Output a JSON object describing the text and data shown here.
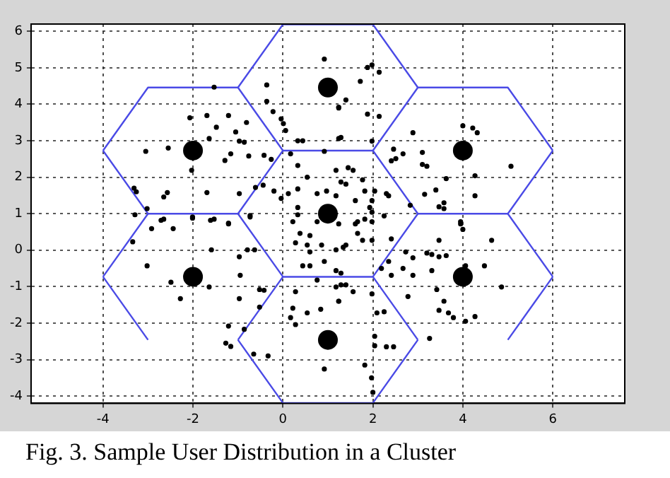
{
  "chart_data": {
    "type": "scatter",
    "xlim": [
      -5.6,
      7.6
    ],
    "ylim": [
      -4.2,
      6.2
    ],
    "xticks": [
      -4,
      -2,
      0,
      2,
      4,
      6
    ],
    "yticks": [
      -4,
      -3,
      -2,
      -1,
      0,
      1,
      2,
      3,
      4,
      5,
      6
    ],
    "grid": true,
    "legend": false,
    "annotations": [
      "Fig.  3. Sample User Distribution in a Cluster"
    ],
    "series": [
      {
        "marker": "circle",
        "color": "#000000",
        "x": [
          -1.53,
          -0.36,
          -0.36,
          -0.22,
          -0.04,
          0.01,
          0.06,
          -2.07,
          -1.69,
          -1.21,
          -0.81,
          -1.48,
          -1.05,
          -0.97,
          -0.86,
          -1.64,
          -2.55,
          -3.05,
          -1.16,
          -0.76,
          -0.42,
          -0.26,
          -1.29,
          -2.03,
          -3.31,
          -3.26,
          -2.57,
          -2.65,
          -1.69,
          -0.97,
          -0.61,
          -0.44,
          0.92,
          1.24,
          1.24,
          0.92,
          0.33,
          0.44,
          0.17,
          0.54,
          0.33,
          1.18,
          1.29,
          -3.02,
          -2.71,
          -2.01,
          -1.61,
          -1.21,
          -0.73,
          -0.2,
          -0.04,
          0.12,
          0.33,
          0.76,
          0.97,
          1.18,
          0.33,
          0.22,
          0.76,
          1.98,
          1.88,
          2.14,
          1.72,
          1.4,
          1.24,
          1.88,
          2.14,
          1.29,
          1.98,
          4.0,
          4.22,
          4.32,
          2.89,
          2.46,
          2.67,
          3.1,
          2.41,
          2.51,
          3.1,
          3.2,
          5.07,
          3.63,
          4.27,
          3.15,
          3.4,
          4.27,
          3.58,
          3.47,
          1.45,
          1.56,
          1.4,
          1.77,
          1.82,
          2.04,
          2.3,
          2.35,
          1.61,
          1.98,
          1.93,
          2.25,
          1.66,
          1.98,
          2.83,
          3.95,
          -3.29,
          -2.92,
          -2.65,
          -2.44,
          -2.01,
          -1.53,
          -1.21,
          -0.73,
          -3.34,
          -1.59,
          -3.02,
          -2.49,
          -2.28,
          -1.64,
          -0.95,
          -0.97,
          -0.97,
          -0.79,
          -0.63,
          -0.52,
          -0.42,
          -0.52,
          -1.21,
          -0.86,
          -1.27,
          -1.16,
          -0.65,
          -0.33,
          0.33,
          0.38,
          0.6,
          0.28,
          0.54,
          0.6,
          0.86,
          1.18,
          1.34,
          0.44,
          0.6,
          0.92,
          0.76,
          1.18,
          1.24,
          0.28,
          0.22,
          0.17,
          0.54,
          0.28,
          0.84,
          0.92,
          1.18,
          1.29,
          1.4,
          1.24,
          1.61,
          1.82,
          1.98,
          1.66,
          1.4,
          1.77,
          1.98,
          2.41,
          2.73,
          3.2,
          3.31,
          2.89,
          3.47,
          3.63,
          2.35,
          2.19,
          2.67,
          2.41,
          2.89,
          3.31,
          4.06,
          4.48,
          4.86,
          1.29,
          1.56,
          1.24,
          1.98,
          2.78,
          3.42,
          3.58,
          2.09,
          2.25,
          3.47,
          3.68,
          3.79,
          4.06,
          4.27,
          2.04,
          2.04,
          2.3,
          2.46,
          3.26,
          1.82,
          4.64,
          3.95,
          4.0,
          3.58,
          3.47,
          1.97,
          2.0
        ],
        "values": [
          4.47,
          4.53,
          4.08,
          3.8,
          3.6,
          3.47,
          3.28,
          3.63,
          3.69,
          3.69,
          3.5,
          3.37,
          3.24,
          2.99,
          2.96,
          3.06,
          2.8,
          2.71,
          2.64,
          2.58,
          2.6,
          2.49,
          2.46,
          2.19,
          1.7,
          1.6,
          1.58,
          1.46,
          1.58,
          1.55,
          1.72,
          1.78,
          5.24,
          3.9,
          3.06,
          2.71,
          3.0,
          3.0,
          2.64,
          2.0,
          2.32,
          2.19,
          1.87,
          1.14,
          0.82,
          0.88,
          0.82,
          0.74,
          0.91,
          1.62,
          1.42,
          1.55,
          1.68,
          1.55,
          1.62,
          1.49,
          1.17,
          0.78,
          0.78,
          5.08,
          5.01,
          4.88,
          4.63,
          4.12,
          3.92,
          3.73,
          3.67,
          3.09,
          2.99,
          3.41,
          3.35,
          3.22,
          3.22,
          2.77,
          2.64,
          2.68,
          2.45,
          2.51,
          2.35,
          2.3,
          2.3,
          1.96,
          2.04,
          1.53,
          1.65,
          1.49,
          1.3,
          1.19,
          2.26,
          2.19,
          1.81,
          1.93,
          1.62,
          1.62,
          1.55,
          1.49,
          1.36,
          1.36,
          1.17,
          0.94,
          0.78,
          0.78,
          1.23,
          0.78,
          0.97,
          0.59,
          0.85,
          0.59,
          0.91,
          0.85,
          0.72,
          0.95,
          0.23,
          0.01,
          -0.43,
          -0.88,
          -1.33,
          -1.01,
          -0.69,
          -1.33,
          -0.18,
          0.01,
          0.01,
          -1.08,
          -1.1,
          -1.56,
          -2.08,
          -2.17,
          -2.55,
          -2.64,
          -2.85,
          -2.9,
          0.97,
          0.46,
          0.4,
          0.2,
          0.14,
          -0.05,
          0.14,
          0.01,
          0.08,
          -0.43,
          -0.43,
          -0.31,
          -0.82,
          -1.01,
          -1.4,
          -1.14,
          -1.59,
          -1.85,
          -1.72,
          -2.04,
          -1.62,
          -3.26,
          -0.56,
          -0.63,
          -0.95,
          0.72,
          0.72,
          0.85,
          1.04,
          0.46,
          0.14,
          0.27,
          0.27,
          0.31,
          -0.05,
          -0.08,
          -0.12,
          -0.21,
          -0.18,
          -0.15,
          -0.31,
          -0.5,
          -0.5,
          -0.69,
          -0.69,
          -0.56,
          -0.43,
          -0.43,
          -1.01,
          -0.95,
          -1.14,
          -1.4,
          -1.2,
          -1.27,
          -1.08,
          -1.4,
          -1.72,
          -1.69,
          -1.65,
          -1.72,
          -1.85,
          -1.95,
          -1.82,
          -2.36,
          -2.62,
          -2.65,
          -2.65,
          -2.42,
          -3.15,
          0.27,
          0.72,
          0.57,
          1.14,
          0.27,
          -3.5,
          -3.9
        ]
      },
      {
        "marker": "circle",
        "color": "#000000",
        "x": [
          1,
          1,
          -2,
          4,
          -2,
          4,
          1
        ],
        "values": [
          1,
          4.46,
          2.73,
          2.73,
          -0.73,
          -0.73,
          -2.46
        ]
      },
      {
        "type": "line",
        "marker": "none",
        "color": "#4a4ae6",
        "x": [
          -4,
          -3,
          -1,
          0,
          2,
          3,
          5,
          6
        ],
        "values": [
          2.73,
          4.46,
          4.46,
          6.19,
          6.19,
          4.46,
          4.46,
          2.73
        ]
      },
      {
        "type": "line",
        "marker": "none",
        "color": "#4a4ae6",
        "x": [
          -4,
          -3,
          -1,
          0,
          2,
          3,
          5,
          6
        ],
        "values": [
          2.73,
          1,
          1,
          2.73,
          2.73,
          1,
          1,
          2.73
        ]
      },
      {
        "type": "line",
        "marker": "none",
        "color": "#4a4ae6",
        "x": [
          -1,
          0
        ],
        "values": [
          4.46,
          2.73
        ]
      },
      {
        "type": "line",
        "marker": "none",
        "color": "#4a4ae6",
        "x": [
          2,
          3
        ],
        "values": [
          2.73,
          4.46
        ]
      },
      {
        "type": "line",
        "marker": "none",
        "color": "#4a4ae6",
        "x": [
          -4,
          -3
        ],
        "values": [
          -0.73,
          1
        ]
      },
      {
        "type": "line",
        "marker": "none",
        "color": "#4a4ae6",
        "x": [
          -4,
          -3
        ],
        "values": [
          -0.73,
          -2.46
        ]
      },
      {
        "type": "line",
        "marker": "none",
        "color": "#4a4ae6",
        "x": [
          -1,
          0,
          2,
          3
        ],
        "values": [
          1,
          -0.73,
          -0.73,
          1
        ]
      },
      {
        "type": "line",
        "marker": "none",
        "color": "#4a4ae6",
        "x": [
          -1,
          0
        ],
        "values": [
          -2.46,
          -0.73
        ]
      },
      {
        "type": "line",
        "marker": "none",
        "color": "#4a4ae6",
        "x": [
          2,
          3
        ],
        "values": [
          -0.73,
          -2.46
        ]
      },
      {
        "type": "line",
        "marker": "none",
        "color": "#4a4ae6",
        "x": [
          -1,
          0,
          2,
          3
        ],
        "values": [
          -2.46,
          -4.19,
          -4.19,
          -2.46
        ]
      },
      {
        "type": "line",
        "marker": "none",
        "color": "#4a4ae6",
        "x": [
          5,
          6
        ],
        "values": [
          1,
          -0.73
        ]
      },
      {
        "type": "line",
        "marker": "none",
        "color": "#4a4ae6",
        "x": [
          5,
          6
        ],
        "values": [
          -2.46,
          -0.73
        ]
      }
    ]
  }
}
